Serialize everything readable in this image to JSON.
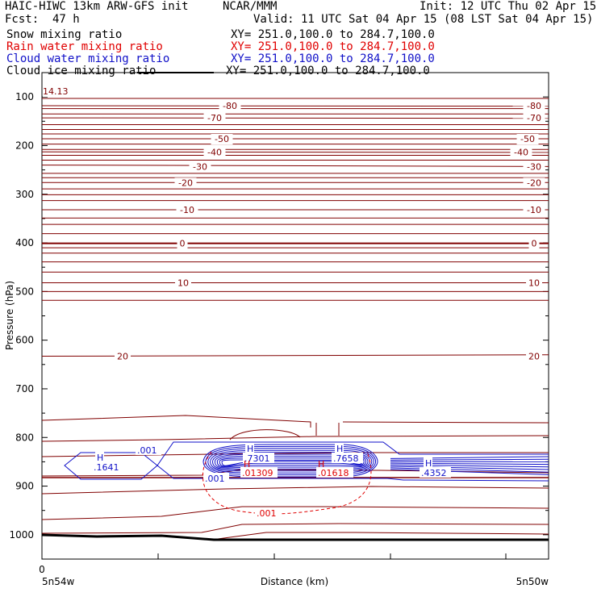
{
  "header": {
    "title_left": "HAIC-HIWC 13km ARW-GFS init",
    "org": "NCAR/MMM",
    "init": "Init: 12 UTC Thu 02 Apr 15",
    "fcst_label": "Fcst:",
    "fcst_value": "47 h",
    "valid": "Valid: 11 UTC Sat 04 Apr 15 (08 LST Sat 04 Apr 15)"
  },
  "legend": [
    {
      "name": "Snow mixing ratio",
      "xy": "XY= 251.0,100.0 to 284.7,100.0",
      "color": "#000000",
      "line": false
    },
    {
      "name": "Rain water mixing ratio",
      "xy": "XY= 251.0,100.0 to 284.7,100.0",
      "color": "#e00000",
      "line": false
    },
    {
      "name": "Cloud water mixing ratio",
      "xy": "XY= 251.0,100.0 to 284.7,100.0",
      "color": "#1010c8",
      "line": false
    },
    {
      "name": "Cloud ice mixing ratio",
      "xy": "XY= 251.0,100.0 to 284.7,100.0",
      "color": "#000000",
      "line": true
    }
  ],
  "chart_data": {
    "type": "cross-section",
    "ylabel": "Pressure (hPa)",
    "xlabel": "Distance (km)",
    "x_tick_label": "0",
    "x_left_label": "5n54w",
    "x_right_label": "5n50w",
    "yticks": [
      100,
      200,
      300,
      400,
      500,
      600,
      700,
      800,
      900,
      1000
    ],
    "ylim": [
      50,
      1050
    ],
    "temperature_labels": [
      {
        "value": "-80",
        "p": 118
      },
      {
        "value": "-70",
        "p": 143
      },
      {
        "value": "-50",
        "p": 186
      },
      {
        "value": "-40",
        "p": 213
      },
      {
        "value": "-30",
        "p": 243
      },
      {
        "value": "-20",
        "p": 276
      },
      {
        "value": "-10",
        "p": 332
      },
      {
        "value": "0",
        "p": 401
      },
      {
        "value": "10",
        "p": 482
      },
      {
        "value": "20",
        "p": 633
      }
    ],
    "corner_label": "14.13",
    "cloud_water_maxima": [
      {
        "label": "H",
        "value": ".1641"
      },
      {
        "label": "H",
        "value": ".7301"
      },
      {
        "label": "H",
        "value": ".7658"
      },
      {
        "label": "H",
        "value": ".4352"
      }
    ],
    "cloud_water_contour_labels": [
      ".001",
      ".001"
    ],
    "rain_water_maxima": [
      {
        "label": "H",
        "value": ".01309"
      },
      {
        "label": "H",
        "value": ".01618"
      }
    ],
    "rain_water_contour_label": ".001"
  }
}
